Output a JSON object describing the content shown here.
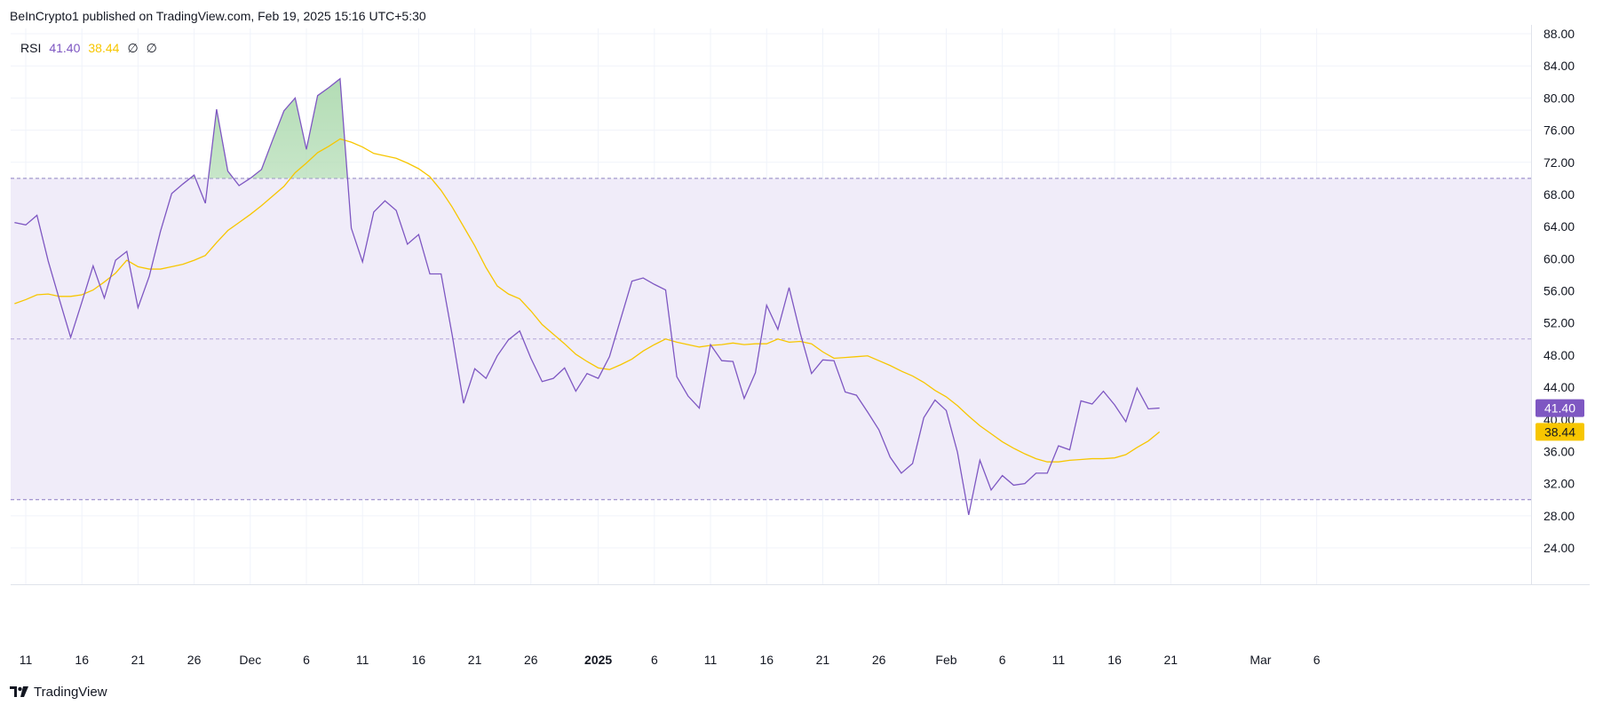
{
  "attribution": "BeInCrypto1 published on TradingView.com, Feb 19, 2025 15:16 UTC+5:30",
  "legend": {
    "name": "RSI",
    "rsi_value": "41.40",
    "ma_value": "38.44",
    "na1": "∅",
    "na2": "∅"
  },
  "brand": {
    "logo": "tradingview-logo-icon",
    "name": "TradingView"
  },
  "colors": {
    "rsi": "#7e57c2",
    "ma": "#f7c600",
    "band": "#f0ecf9",
    "overbought_fill": "#c8e6c9",
    "grid": "#f0f3fa"
  },
  "chart_data": {
    "type": "line",
    "ylim": [
      22,
      90
    ],
    "yticks": [
      24,
      28,
      32,
      36,
      40,
      44,
      48,
      52,
      56,
      60,
      64,
      68,
      72,
      76,
      80,
      84,
      88
    ],
    "ytick_labels": [
      "24.00",
      "28.00",
      "32.00",
      "36.00",
      "40.00",
      "44.00",
      "48.00",
      "52.00",
      "56.00",
      "60.00",
      "64.00",
      "68.00",
      "72.00",
      "76.00",
      "80.00",
      "84.00",
      "88.00"
    ],
    "x_ticks": [
      {
        "label": "11",
        "x": "2024-11-11"
      },
      {
        "label": "16",
        "x": "2024-11-16"
      },
      {
        "label": "21",
        "x": "2024-11-21"
      },
      {
        "label": "26",
        "x": "2024-11-26"
      },
      {
        "label": "Dec",
        "x": "2024-12-01"
      },
      {
        "label": "6",
        "x": "2024-12-06"
      },
      {
        "label": "11",
        "x": "2024-12-11"
      },
      {
        "label": "16",
        "x": "2024-12-16"
      },
      {
        "label": "21",
        "x": "2024-12-21"
      },
      {
        "label": "26",
        "x": "2024-12-26"
      },
      {
        "label": "2025",
        "x": "2025-01-01",
        "bold": true
      },
      {
        "label": "6",
        "x": "2025-01-06"
      },
      {
        "label": "11",
        "x": "2025-01-11"
      },
      {
        "label": "16",
        "x": "2025-01-16"
      },
      {
        "label": "21",
        "x": "2025-01-21"
      },
      {
        "label": "26",
        "x": "2025-01-26"
      },
      {
        "label": "Feb",
        "x": "2025-02-01"
      },
      {
        "label": "6",
        "x": "2025-02-06"
      },
      {
        "label": "11",
        "x": "2025-02-11"
      },
      {
        "label": "16",
        "x": "2025-02-16"
      },
      {
        "label": "21",
        "x": "2025-02-21"
      },
      {
        "label": "Mar",
        "x": "2025-03-01"
      },
      {
        "label": "6",
        "x": "2025-03-06"
      }
    ],
    "bands": {
      "upper": 70,
      "middle": 50,
      "lower": 30
    },
    "x_start": "2024-11-10",
    "series": [
      {
        "key": "rsi",
        "color": "#7e57c2",
        "values": [
          64.5,
          64.2,
          65.4,
          59.7,
          54.9,
          50.2,
          54.6,
          59.1,
          55.1,
          59.8,
          60.9,
          53.9,
          57.8,
          63.4,
          68.1,
          69.3,
          70.4,
          66.9,
          78.6,
          70.9,
          69.1,
          70.0,
          71.1,
          74.8,
          78.4,
          80.0,
          73.6,
          80.3,
          81.3,
          82.4,
          63.8,
          59.6,
          65.8,
          67.2,
          66.0,
          61.8,
          63.0,
          58.1,
          58.1,
          50.4,
          42.0,
          46.3,
          45.1,
          47.9,
          49.9,
          51.0,
          47.6,
          44.7,
          45.1,
          46.4,
          43.5,
          45.7,
          45.1,
          47.8,
          52.5,
          57.2,
          57.6,
          56.8,
          56.1,
          45.3,
          42.9,
          41.4,
          49.3,
          47.3,
          47.2,
          42.6,
          45.8,
          54.2,
          51.2,
          56.4,
          50.7,
          45.7,
          47.4,
          47.3,
          43.4,
          43.0,
          40.9,
          38.7,
          35.3,
          33.3,
          34.5,
          40.2,
          42.4,
          41.1,
          35.9,
          28.1,
          34.9,
          31.2,
          33.0,
          31.8,
          32.0,
          33.3,
          33.3,
          36.7,
          36.2,
          42.3,
          41.9,
          43.5,
          41.8,
          39.7,
          43.9,
          41.3,
          41.4
        ]
      },
      {
        "key": "ma",
        "color": "#f7c600",
        "values": [
          54.4,
          54.9,
          55.5,
          55.6,
          55.3,
          55.3,
          55.5,
          56.1,
          57.1,
          58.2,
          59.8,
          59.0,
          58.7,
          58.7,
          59.0,
          59.3,
          59.8,
          60.4,
          62.0,
          63.5,
          64.5,
          65.5,
          66.6,
          67.8,
          69.0,
          70.7,
          71.9,
          73.2,
          74.0,
          74.9,
          74.5,
          73.9,
          73.1,
          72.8,
          72.5,
          71.9,
          71.2,
          70.2,
          68.5,
          66.4,
          64.0,
          61.6,
          58.9,
          56.6,
          55.6,
          55.0,
          53.5,
          51.8,
          50.6,
          49.4,
          48.1,
          47.2,
          46.4,
          46.2,
          46.8,
          47.5,
          48.5,
          49.3,
          50.0,
          49.6,
          49.3,
          49.0,
          49.2,
          49.3,
          49.5,
          49.3,
          49.4,
          49.4,
          50.0,
          49.6,
          49.7,
          49.4,
          48.4,
          47.6,
          47.7,
          47.8,
          47.9,
          47.3,
          46.7,
          46.0,
          45.4,
          44.6,
          43.6,
          42.8,
          41.7,
          40.4,
          39.2,
          38.2,
          37.2,
          36.4,
          35.7,
          35.1,
          34.7,
          34.7,
          34.9,
          35.0,
          35.1,
          35.1,
          35.2,
          35.6,
          36.5,
          37.3,
          38.44
        ]
      }
    ]
  },
  "badges": [
    {
      "key": "rsi",
      "label": "41.40",
      "value": 41.4,
      "bg": "#7e57c2",
      "fg": "#ffffff"
    },
    {
      "key": "ma",
      "label": "38.44",
      "value": 38.44,
      "bg": "#f7c600",
      "fg": "#131722"
    }
  ]
}
